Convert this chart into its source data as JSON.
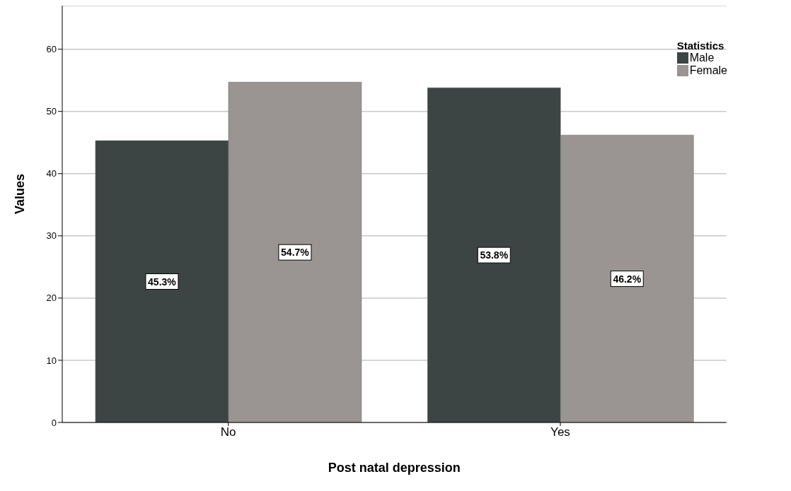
{
  "chart_data": {
    "type": "bar",
    "xlabel": "Post natal depression",
    "ylabel": "Values",
    "legend_title": "Statistics",
    "categories": [
      "No",
      "Yes"
    ],
    "series": [
      {
        "name": "Male",
        "color": "#3c4543",
        "values": [
          45.3,
          53.8
        ],
        "value_labels": [
          "45.3%",
          "53.8%"
        ]
      },
      {
        "name": "Female",
        "color": "#9a9492",
        "values": [
          54.7,
          46.2
        ],
        "value_labels": [
          "54.7%",
          "46.2%"
        ]
      }
    ],
    "ylim": [
      0,
      67
    ],
    "yticks": [
      0,
      10,
      20,
      30,
      40,
      50,
      60
    ],
    "grid": "y",
    "legend": "top right"
  }
}
